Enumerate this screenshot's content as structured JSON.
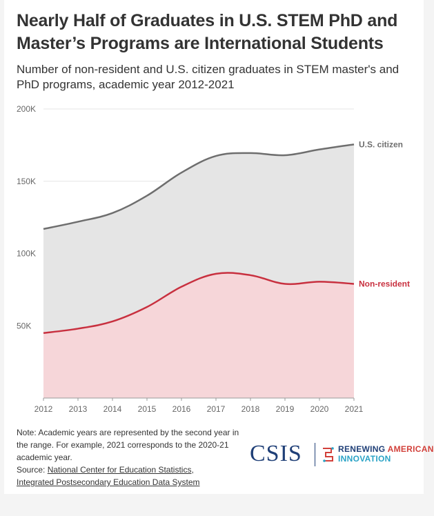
{
  "title": "Nearly Half of Graduates in U.S. STEM PhD and Master’s Programs are International Students",
  "subtitle": "Number of non-resident and U.S. citizen graduates in STEM master's and PhD programs, academic year 2012-2021",
  "chart_data": {
    "type": "area",
    "title": "Nearly Half of Graduates in U.S. STEM PhD and Master’s Programs are International Students",
    "x": [
      2012,
      2013,
      2014,
      2015,
      2016,
      2017,
      2018,
      2019,
      2020,
      2021
    ],
    "ylim": [
      0,
      200000
    ],
    "y_ticks": [
      50000,
      100000,
      150000,
      200000
    ],
    "y_tick_labels": [
      "50K",
      "100K",
      "150K",
      "200K"
    ],
    "xlabel": "",
    "ylabel": "",
    "grid": true,
    "series": [
      {
        "name": "U.S. citizen",
        "color": "#6e6e6e",
        "fill": "#e5e5e5",
        "values": [
          117000,
          122000,
          128000,
          140000,
          156000,
          167500,
          169500,
          168000,
          172000,
          175500
        ]
      },
      {
        "name": "Non-resident",
        "color": "#c8303f",
        "fill": "#f6d6d9",
        "values": [
          45000,
          48000,
          53000,
          63000,
          77000,
          86000,
          85000,
          79000,
          80500,
          79000
        ]
      }
    ]
  },
  "note": {
    "text": "Note: Academic years are represented by the second year in the range. For example, 2021 corresponds to the 2020-21 academic year.",
    "source_prefix": "Source: ",
    "source_link1": "National Center for Education Statistics",
    "source_sep": ",",
    "source_link2": "Integrated Postsecondary Education Data System"
  },
  "logos": {
    "csis": "CSIS",
    "ra_word1": "RENEWING",
    "ra_word2": "AMERICAN",
    "ra_line2": "INNOVATION"
  }
}
